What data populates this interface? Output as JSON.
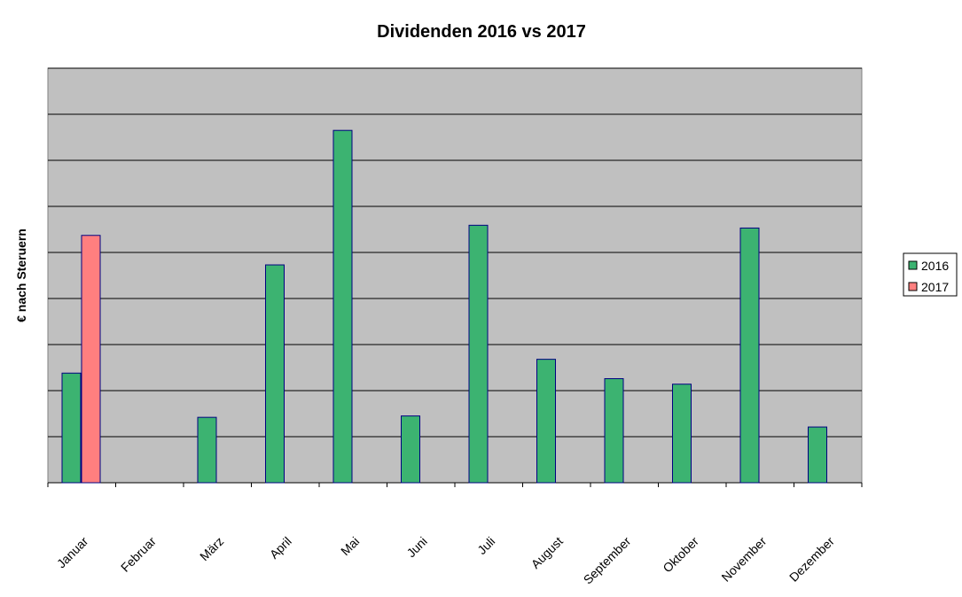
{
  "chart_data": {
    "type": "bar",
    "title": "Dividenden 2016 vs 2017",
    "xlabel": "",
    "ylabel": "€ nach Steruern",
    "categories": [
      "Januar",
      "Februar",
      "März",
      "April",
      "Mai",
      "Juni",
      "Juli",
      "August",
      "September",
      "Oktober",
      "November",
      "Dezember"
    ],
    "series": [
      {
        "name": "2016",
        "color": "#3cb371",
        "values": [
          2.38,
          0,
          1.42,
          4.73,
          7.65,
          1.45,
          5.59,
          2.68,
          2.26,
          2.14,
          5.53,
          1.21
        ]
      },
      {
        "name": "2017",
        "color": "#ff7f7f",
        "values": [
          5.37,
          null,
          null,
          null,
          null,
          null,
          null,
          null,
          null,
          null,
          null,
          null
        ]
      }
    ],
    "ylim": [
      0,
      9
    ],
    "grid": true,
    "legend_position": "right",
    "plot_background": "#c0c0c0",
    "bar_outline": "#000080"
  }
}
